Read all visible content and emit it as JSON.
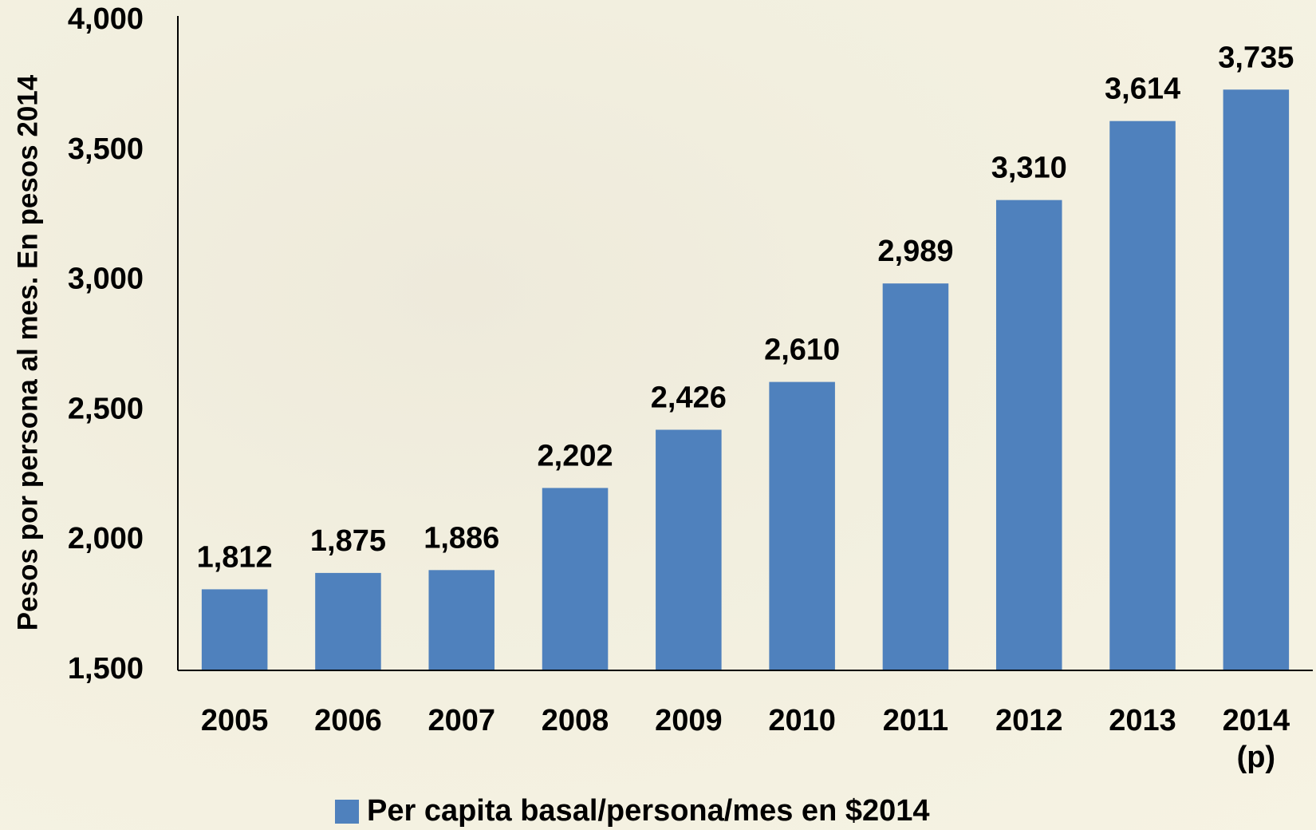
{
  "chart_data": {
    "type": "bar",
    "y_label": "Pesos por persona al mes. En pesos 2014",
    "categories": [
      "2005",
      "2006",
      "2007",
      "2008",
      "2009",
      "2010",
      "2011",
      "2012",
      "2013",
      "2014 (p)"
    ],
    "series": [
      {
        "name": "Per capita basal/persona/mes en $2014",
        "color": "#4f81bd",
        "values": [
          1812,
          1875,
          1886,
          2202,
          2426,
          2610,
          2989,
          3310,
          3614,
          3735
        ],
        "value_labels": [
          "1,812",
          "1,875",
          "1,886",
          "2,202",
          "2,426",
          "2,610",
          "2,989",
          "3,310",
          "3,614",
          "3,735"
        ]
      }
    ],
    "ylim": [
      1500,
      4000
    ],
    "yticks": [
      {
        "value": 1500,
        "label": "1,500"
      },
      {
        "value": 2000,
        "label": "2,000"
      },
      {
        "value": 2500,
        "label": "2,500"
      },
      {
        "value": 3000,
        "label": "3,000"
      },
      {
        "value": 3500,
        "label": "3,500"
      },
      {
        "value": 4000,
        "label": "4,000"
      }
    ],
    "grid": false,
    "legend": "bottom"
  }
}
